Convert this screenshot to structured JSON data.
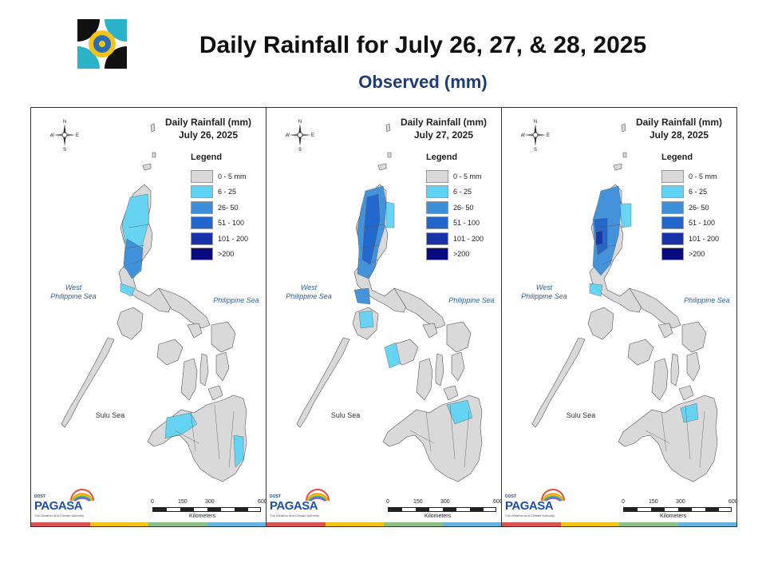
{
  "header": {
    "title": "Daily Rainfall for July 26, 27, & 28, 2025",
    "subtitle": "Observed (mm)"
  },
  "legend": {
    "heading": "Legend",
    "items": [
      {
        "label": "0 - 5 mm",
        "color": "#d9d9d9"
      },
      {
        "label": "6 - 25",
        "color": "#5fd3f3"
      },
      {
        "label": "26- 50",
        "color": "#3d8fd9"
      },
      {
        "label": "51 - 100",
        "color": "#2266cc"
      },
      {
        "label": "101 - 200",
        "color": "#1a33a8"
      },
      {
        "label": ">200",
        "color": "#0a0a80"
      }
    ]
  },
  "panels": [
    {
      "title_line1": "Daily Rainfall (mm)",
      "title_line2": "July 26, 2025"
    },
    {
      "title_line1": "Daily Rainfall (mm)",
      "title_line2": "July 27, 2025"
    },
    {
      "title_line1": "Daily Rainfall (mm)",
      "title_line2": "July 28, 2025"
    }
  ],
  "map_labels": {
    "west_sea_line1": "West",
    "west_sea_line2": "Philippine Sea",
    "philippine_sea": "Philippine Sea",
    "sulu_sea": "Sulu Sea",
    "compass_n": "N",
    "compass_s": "S",
    "compass_w": "W",
    "compass_e": "E"
  },
  "scale_bar": {
    "ticks": [
      "0",
      "150",
      "300",
      "600"
    ],
    "unit": "Kilometers"
  },
  "branding": {
    "dost": "DOST",
    "name": "PAGASA",
    "tagline": "The Weather and Climate Authority"
  },
  "colors": {
    "land": "#d9d9d9",
    "outline": "#555555",
    "strip": [
      "#d9534f",
      "#f0c419",
      "#8cc084",
      "#66b3e0"
    ]
  }
}
